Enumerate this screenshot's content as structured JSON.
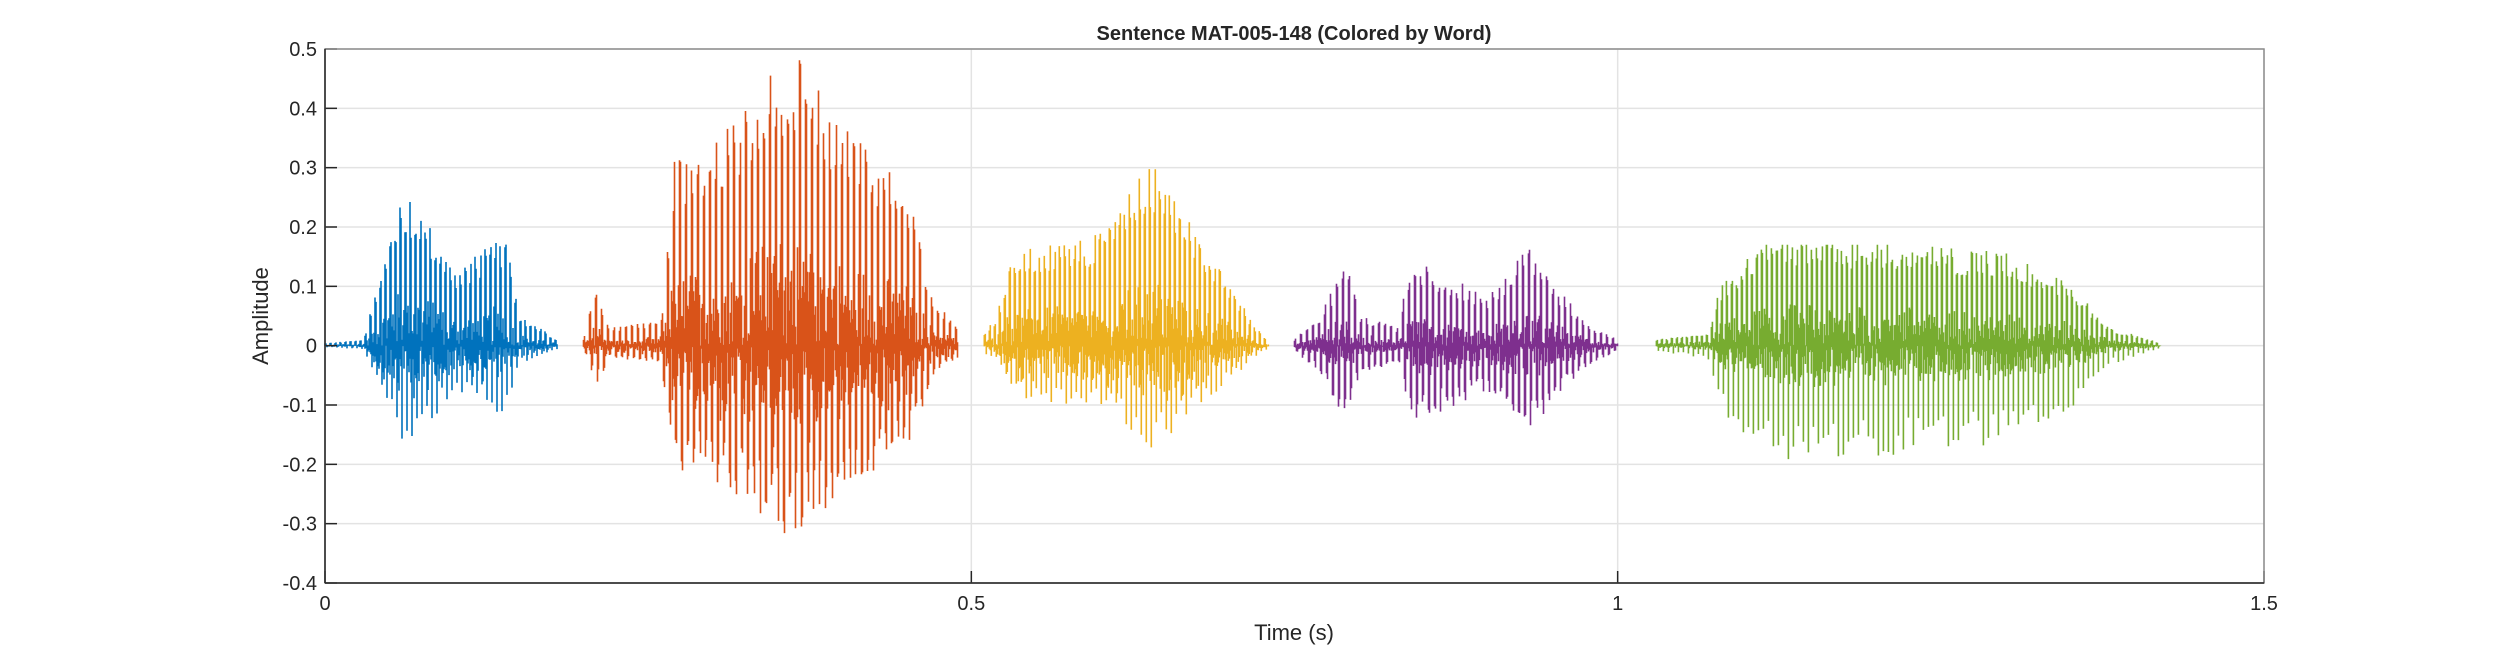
{
  "chart_data": {
    "type": "line",
    "title": "Sentence MAT-005-148 (Colored by Word)",
    "xlabel": "Time (s)",
    "ylabel": "Amplitude",
    "xlim": [
      0,
      1.5
    ],
    "ylim": [
      -0.4,
      0.5
    ],
    "xticks": [
      0,
      0.5,
      1,
      1.5
    ],
    "xtick_labels": [
      "0",
      "0.5",
      "1",
      "1.5"
    ],
    "yticks": [
      -0.4,
      -0.3,
      -0.2,
      -0.1,
      0,
      0.1,
      0.2,
      0.3,
      0.4,
      0.5
    ],
    "ytick_labels": [
      "-0.4",
      "-0.3",
      "-0.2",
      "-0.1",
      "0",
      "0.1",
      "0.2",
      "0.3",
      "0.4",
      "0.5"
    ],
    "grid": true,
    "series": [
      {
        "name": "word-1",
        "color": "#0072BD",
        "start": 0.0,
        "end": 0.18,
        "peak_pos": 0.27,
        "peak_neg": -0.21,
        "envelope": [
          [
            0,
            0.004
          ],
          [
            0.03,
            0.01
          ],
          [
            0.04,
            0.1
          ],
          [
            0.06,
            0.25
          ],
          [
            0.08,
            0.2
          ],
          [
            0.1,
            0.12
          ],
          [
            0.12,
            0.15
          ],
          [
            0.14,
            0.18
          ],
          [
            0.15,
            0.05
          ],
          [
            0.18,
            0.01
          ]
        ]
      },
      {
        "name": "word-2",
        "color": "#D95319",
        "start": 0.2,
        "end": 0.49,
        "peak_pos": 0.49,
        "peak_neg": -0.4,
        "envelope": [
          [
            0.2,
            0.01
          ],
          [
            0.21,
            0.1
          ],
          [
            0.22,
            0.03
          ],
          [
            0.26,
            0.04
          ],
          [
            0.27,
            0.3
          ],
          [
            0.3,
            0.33
          ],
          [
            0.36,
            0.48
          ],
          [
            0.4,
            0.36
          ],
          [
            0.45,
            0.26
          ],
          [
            0.47,
            0.08
          ],
          [
            0.49,
            0.03
          ]
        ]
      },
      {
        "name": "word-3",
        "color": "#EDB120",
        "start": 0.51,
        "end": 0.73,
        "peak_pos": 0.31,
        "peak_neg": -0.22,
        "envelope": [
          [
            0.51,
            0.02
          ],
          [
            0.52,
            0.05
          ],
          [
            0.53,
            0.15
          ],
          [
            0.6,
            0.18
          ],
          [
            0.64,
            0.3
          ],
          [
            0.68,
            0.16
          ],
          [
            0.7,
            0.1
          ],
          [
            0.72,
            0.03
          ],
          [
            0.73,
            0.01
          ]
        ]
      },
      {
        "name": "word-4",
        "color": "#7E2F8E",
        "start": 0.75,
        "end": 1.0,
        "peak_pos": 0.17,
        "peak_neg": -0.19,
        "envelope": [
          [
            0.75,
            0.01
          ],
          [
            0.77,
            0.05
          ],
          [
            0.79,
            0.14
          ],
          [
            0.8,
            0.05
          ],
          [
            0.83,
            0.03
          ],
          [
            0.84,
            0.14
          ],
          [
            0.88,
            0.1
          ],
          [
            0.9,
            0.08
          ],
          [
            0.93,
            0.16
          ],
          [
            0.95,
            0.1
          ],
          [
            0.98,
            0.03
          ],
          [
            1.0,
            0.01
          ]
        ]
      },
      {
        "name": "word-5",
        "color": "#77AC30",
        "start": 1.03,
        "end": 1.42,
        "peak_pos": 0.17,
        "peak_neg": -0.22,
        "envelope": [
          [
            1.03,
            0.01
          ],
          [
            1.07,
            0.02
          ],
          [
            1.08,
            0.1
          ],
          [
            1.12,
            0.18
          ],
          [
            1.2,
            0.17
          ],
          [
            1.3,
            0.15
          ],
          [
            1.35,
            0.1
          ],
          [
            1.38,
            0.03
          ],
          [
            1.42,
            0.005
          ]
        ]
      }
    ]
  }
}
